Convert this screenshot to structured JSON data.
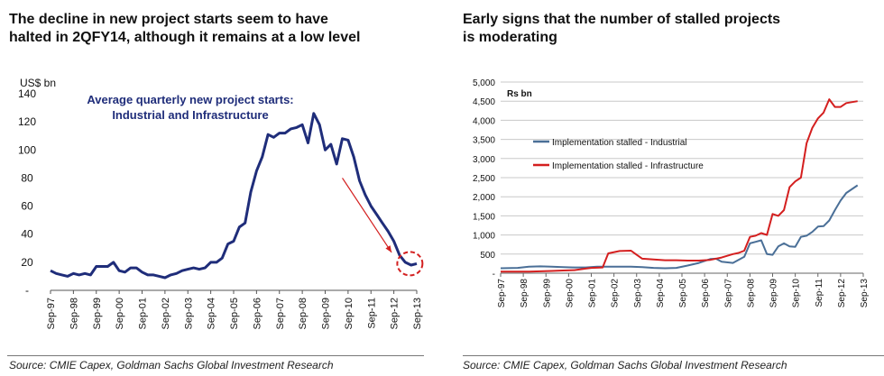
{
  "left": {
    "title_line1": "The decline in new project starts seem to have",
    "title_line2": "halted in 2QFY14, although it remains at a low level",
    "source": "Source: CMIE Capex, Goldman Sachs Global Investment Research",
    "colors": {
      "line": "#1f2d7a",
      "arrow": "#d32020"
    },
    "chart_data": {
      "type": "line",
      "ylabel": "US$ bn",
      "annotation_line1": "Average quarterly new project starts:",
      "annotation_line2": "Industrial and Infrastructure",
      "ylim": [
        0,
        140
      ],
      "y_ticks": [
        {
          "value": 0,
          "label": "-"
        },
        {
          "value": 20,
          "label": "20"
        },
        {
          "value": 40,
          "label": "40"
        },
        {
          "value": 60,
          "label": "60"
        },
        {
          "value": 80,
          "label": "80"
        },
        {
          "value": 100,
          "label": "100"
        },
        {
          "value": 120,
          "label": "120"
        },
        {
          "value": 140,
          "label": "140"
        }
      ],
      "x_labels": [
        "Sep-97",
        "Sep-98",
        "Sep-99",
        "Sep-00",
        "Sep-01",
        "Sep-02",
        "Sep-03",
        "Sep-04",
        "Sep-05",
        "Sep-06",
        "Sep-07",
        "Sep-08",
        "Sep-09",
        "Sep-10",
        "Sep-11",
        "Sep-12",
        "Sep-13"
      ],
      "series": [
        {
          "values": [
            [
              1997.75,
              14
            ],
            [
              1998.0,
              12
            ],
            [
              1998.25,
              11
            ],
            [
              1998.5,
              10
            ],
            [
              1998.75,
              12
            ],
            [
              1999.0,
              11
            ],
            [
              1999.25,
              12
            ],
            [
              1999.5,
              11
            ],
            [
              1999.75,
              17
            ],
            [
              2000.0,
              17
            ],
            [
              2000.25,
              17
            ],
            [
              2000.5,
              20
            ],
            [
              2000.75,
              14
            ],
            [
              2001.0,
              13
            ],
            [
              2001.25,
              16
            ],
            [
              2001.5,
              16
            ],
            [
              2001.75,
              13
            ],
            [
              2002.0,
              11
            ],
            [
              2002.25,
              11
            ],
            [
              2002.5,
              10
            ],
            [
              2002.75,
              9
            ],
            [
              2003.0,
              11
            ],
            [
              2003.25,
              12
            ],
            [
              2003.5,
              14
            ],
            [
              2003.75,
              15
            ],
            [
              2004.0,
              16
            ],
            [
              2004.25,
              15
            ],
            [
              2004.5,
              16
            ],
            [
              2004.75,
              20
            ],
            [
              2005.0,
              20
            ],
            [
              2005.25,
              23
            ],
            [
              2005.5,
              33
            ],
            [
              2005.75,
              35
            ],
            [
              2006.0,
              45
            ],
            [
              2006.25,
              48
            ],
            [
              2006.5,
              70
            ],
            [
              2006.75,
              85
            ],
            [
              2007.0,
              95
            ],
            [
              2007.25,
              111
            ],
            [
              2007.5,
              109
            ],
            [
              2007.75,
              112
            ],
            [
              2008.0,
              112
            ],
            [
              2008.25,
              115
            ],
            [
              2008.5,
              116
            ],
            [
              2008.75,
              118
            ],
            [
              2009.0,
              105
            ],
            [
              2009.25,
              126
            ],
            [
              2009.5,
              118
            ],
            [
              2009.75,
              100
            ],
            [
              2010.0,
              104
            ],
            [
              2010.25,
              90
            ],
            [
              2010.5,
              108
            ],
            [
              2010.75,
              107
            ],
            [
              2011.0,
              95
            ],
            [
              2011.25,
              78
            ],
            [
              2011.5,
              68
            ],
            [
              2011.75,
              60
            ],
            [
              2012.0,
              54
            ],
            [
              2012.25,
              48
            ],
            [
              2012.5,
              42
            ],
            [
              2012.75,
              35
            ],
            [
              2013.0,
              25
            ],
            [
              2013.25,
              20
            ],
            [
              2013.5,
              18
            ],
            [
              2013.75,
              19
            ]
          ]
        }
      ]
    }
  },
  "right": {
    "title_line1": "Early signs that the number of stalled projects",
    "title_line2": "is moderating",
    "source": "Source: CMIE Capex, Goldman Sachs Global Investment Research",
    "colors": {
      "industrial": "#4a6f97",
      "infrastructure": "#d41f1f",
      "grid": "#c8c8c8"
    },
    "chart_data": {
      "type": "line",
      "unit_label": "Rs bn",
      "ylim": [
        0,
        5000
      ],
      "y_ticks": [
        {
          "value": 0,
          "label": "-"
        },
        {
          "value": 500,
          "label": "500"
        },
        {
          "value": 1000,
          "label": "1,000"
        },
        {
          "value": 1500,
          "label": "1,500"
        },
        {
          "value": 2000,
          "label": "2,000"
        },
        {
          "value": 2500,
          "label": "2,500"
        },
        {
          "value": 3000,
          "label": "3,000"
        },
        {
          "value": 3500,
          "label": "3,500"
        },
        {
          "value": 4000,
          "label": "4,000"
        },
        {
          "value": 4500,
          "label": "4,500"
        },
        {
          "value": 5000,
          "label": "5,000"
        }
      ],
      "x_labels": [
        "Sep-97",
        "Sep-98",
        "Sep-99",
        "Sep-00",
        "Sep-01",
        "Sep-02",
        "Sep-03",
        "Sep-04",
        "Sep-05",
        "Sep-06",
        "Sep-07",
        "Sep-08",
        "Sep-09",
        "Sep-10",
        "Sep-11",
        "Sep-12",
        "Sep-13"
      ],
      "legend_position": "upper-left",
      "series": [
        {
          "name": "Implementation stalled - Industrial",
          "key": "industrial",
          "values": [
            [
              1997.75,
              130
            ],
            [
              1998.5,
              140
            ],
            [
              1999.0,
              170
            ],
            [
              1999.5,
              180
            ],
            [
              2000.0,
              170
            ],
            [
              2000.5,
              160
            ],
            [
              2001.0,
              150
            ],
            [
              2001.5,
              150
            ],
            [
              2002.0,
              170
            ],
            [
              2002.5,
              170
            ],
            [
              2003.0,
              170
            ],
            [
              2003.5,
              170
            ],
            [
              2004.0,
              160
            ],
            [
              2004.5,
              140
            ],
            [
              2005.0,
              130
            ],
            [
              2005.5,
              140
            ],
            [
              2006.0,
              200
            ],
            [
              2006.5,
              270
            ],
            [
              2007.0,
              370
            ],
            [
              2007.25,
              380
            ],
            [
              2007.5,
              300
            ],
            [
              2008.0,
              270
            ],
            [
              2008.5,
              430
            ],
            [
              2008.75,
              780
            ],
            [
              2009.0,
              820
            ],
            [
              2009.25,
              860
            ],
            [
              2009.5,
              500
            ],
            [
              2009.75,
              480
            ],
            [
              2010.0,
              700
            ],
            [
              2010.25,
              780
            ],
            [
              2010.5,
              700
            ],
            [
              2010.75,
              690
            ],
            [
              2011.0,
              950
            ],
            [
              2011.25,
              980
            ],
            [
              2011.5,
              1080
            ],
            [
              2011.75,
              1220
            ],
            [
              2012.0,
              1230
            ],
            [
              2012.25,
              1380
            ],
            [
              2012.5,
              1650
            ],
            [
              2012.75,
              1900
            ],
            [
              2013.0,
              2100
            ],
            [
              2013.5,
              2300
            ]
          ]
        },
        {
          "name": "Implementation stalled - Infrastructure",
          "key": "infrastructure",
          "values": [
            [
              1997.75,
              40
            ],
            [
              1998.5,
              40
            ],
            [
              1999.0,
              40
            ],
            [
              1999.5,
              50
            ],
            [
              2000.0,
              60
            ],
            [
              2000.5,
              70
            ],
            [
              2001.0,
              80
            ],
            [
              2001.5,
              120
            ],
            [
              2001.75,
              140
            ],
            [
              2002.25,
              150
            ],
            [
              2002.5,
              520
            ],
            [
              2003.0,
              580
            ],
            [
              2003.5,
              590
            ],
            [
              2003.75,
              480
            ],
            [
              2004.0,
              380
            ],
            [
              2004.5,
              360
            ],
            [
              2005.0,
              340
            ],
            [
              2005.5,
              340
            ],
            [
              2006.0,
              330
            ],
            [
              2006.5,
              330
            ],
            [
              2007.0,
              350
            ],
            [
              2007.5,
              410
            ],
            [
              2008.0,
              500
            ],
            [
              2008.25,
              530
            ],
            [
              2008.5,
              590
            ],
            [
              2008.75,
              950
            ],
            [
              2009.0,
              980
            ],
            [
              2009.25,
              1050
            ],
            [
              2009.5,
              1000
            ],
            [
              2009.75,
              1550
            ],
            [
              2010.0,
              1500
            ],
            [
              2010.25,
              1650
            ],
            [
              2010.5,
              2250
            ],
            [
              2010.75,
              2400
            ],
            [
              2011.0,
              2500
            ],
            [
              2011.25,
              3400
            ],
            [
              2011.5,
              3800
            ],
            [
              2011.75,
              4050
            ],
            [
              2012.0,
              4200
            ],
            [
              2012.25,
              4550
            ],
            [
              2012.5,
              4350
            ],
            [
              2012.75,
              4350
            ],
            [
              2013.0,
              4450
            ],
            [
              2013.5,
              4500
            ]
          ]
        }
      ]
    }
  }
}
